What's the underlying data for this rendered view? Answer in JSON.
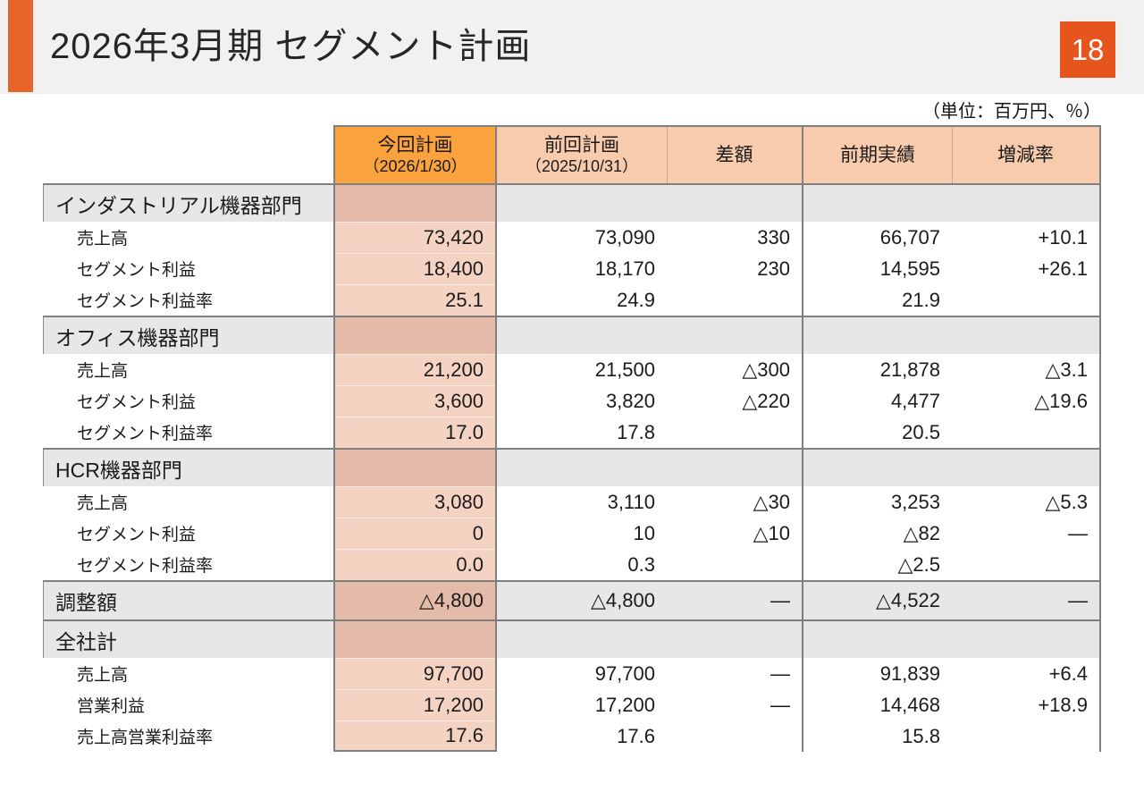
{
  "slide": {
    "title": "2026年3月期  セグメント計画",
    "page_number": "18",
    "unit_note": "（単位：百万円、％）",
    "accent_color": "#E8652A",
    "page_box_color": "#E6551E"
  },
  "table": {
    "headers": {
      "current": "今回計画",
      "current_date": "（2026/1/30）",
      "previous": "前回計画",
      "previous_date": "（2025/10/31）",
      "diff": "差額",
      "actual": "前期実績",
      "change": "増減率"
    },
    "colors": {
      "current_header": "#F9A23E",
      "header_peach": "#F8CBAD",
      "current_column": "#F5D3C3",
      "current_column_dark": "#E3BBA8",
      "section_gray": "#E8E7E7",
      "border_gray": "#7F7F7F"
    },
    "sections": [
      {
        "label": "インダストリアル機器部門",
        "rows": [
          {
            "label": "売上高",
            "current": "73,420",
            "previous": "73,090",
            "diff": "330",
            "actual": "66,707",
            "change": "+10.1"
          },
          {
            "label": "セグメント利益",
            "current": "18,400",
            "previous": "18,170",
            "diff": "230",
            "actual": "14,595",
            "change": "+26.1"
          },
          {
            "label": "セグメント利益率",
            "current": "25.1",
            "previous": "24.9",
            "diff": "",
            "actual": "21.9",
            "change": ""
          }
        ]
      },
      {
        "label": "オフィス機器部門",
        "rows": [
          {
            "label": "売上高",
            "current": "21,200",
            "previous": "21,500",
            "diff": "△300",
            "actual": "21,878",
            "change": "△3.1"
          },
          {
            "label": "セグメント利益",
            "current": "3,600",
            "previous": "3,820",
            "diff": "△220",
            "actual": "4,477",
            "change": "△19.6"
          },
          {
            "label": "セグメント利益率",
            "current": "17.0",
            "previous": "17.8",
            "diff": "",
            "actual": "20.5",
            "change": ""
          }
        ]
      },
      {
        "label": "HCR機器部門",
        "rows": [
          {
            "label": "売上高",
            "current": "3,080",
            "previous": "3,110",
            "diff": "△30",
            "actual": "3,253",
            "change": "△5.3"
          },
          {
            "label": "セグメント利益",
            "current": "0",
            "previous": "10",
            "diff": "△10",
            "actual": "△82",
            "change": "―"
          },
          {
            "label": "セグメント利益率",
            "current": "0.0",
            "previous": "0.3",
            "diff": "",
            "actual": "△2.5",
            "change": ""
          }
        ]
      },
      {
        "label": "全社計",
        "rows": [
          {
            "label": "売上高",
            "current": "97,700",
            "previous": "97,700",
            "diff": "―",
            "actual": "91,839",
            "change": "+6.4"
          },
          {
            "label": "営業利益",
            "current": "17,200",
            "previous": "17,200",
            "diff": "―",
            "actual": "14,468",
            "change": "+18.9"
          },
          {
            "label": "売上高営業利益率",
            "current": "17.6",
            "previous": "17.6",
            "diff": "",
            "actual": "15.8",
            "change": ""
          }
        ]
      }
    ],
    "adjustment": {
      "label": "調整額",
      "current": "△4,800",
      "previous": "△4,800",
      "diff": "―",
      "actual": "△4,522",
      "change": "―"
    }
  }
}
